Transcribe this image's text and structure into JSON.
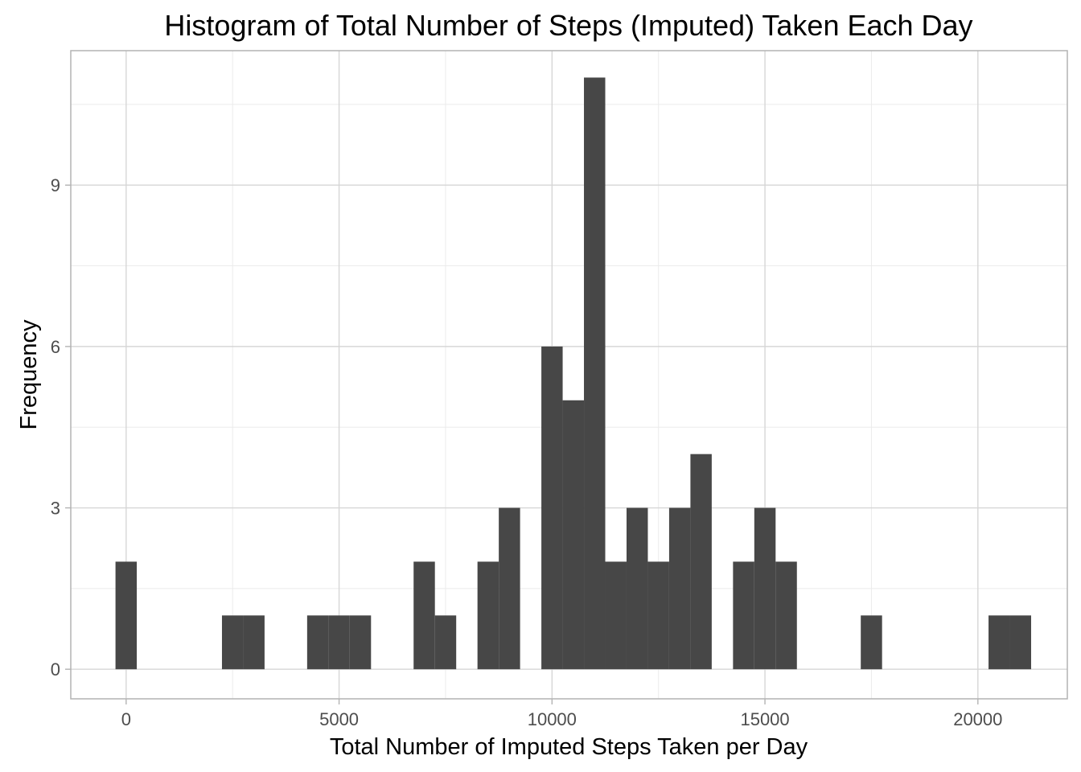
{
  "chart_data": {
    "type": "bar",
    "title": "Histogram of Total Number of Steps (Imputed) Taken Each Day",
    "xlabel": "Total Number of Imputed Steps Taken per Day",
    "ylabel": "Frequency",
    "xlim": [
      -1300,
      22100
    ],
    "ylim": [
      -0.55,
      11.5
    ],
    "xticks": [
      0,
      5000,
      10000,
      15000,
      20000
    ],
    "xtick_labels": [
      "0",
      "5000",
      "10000",
      "15000",
      "20000"
    ],
    "yticks": [
      0,
      3,
      6,
      9
    ],
    "ytick_labels": [
      "0",
      "3",
      "6",
      "9"
    ],
    "grid": true,
    "bin_width": 500,
    "bin_centers": [
      0,
      500,
      1000,
      1500,
      2000,
      2500,
      3000,
      3500,
      4000,
      4500,
      5000,
      5500,
      6000,
      6500,
      7000,
      7500,
      8000,
      8500,
      9000,
      9500,
      10000,
      10500,
      11000,
      11500,
      12000,
      12500,
      13000,
      13500,
      14000,
      14500,
      15000,
      15500,
      16000,
      16500,
      17000,
      17500,
      18000,
      18500,
      19000,
      19500,
      20000,
      20500,
      21000
    ],
    "values": [
      2,
      0,
      0,
      0,
      0,
      1,
      1,
      0,
      0,
      1,
      1,
      1,
      0,
      0,
      2,
      1,
      0,
      2,
      3,
      0,
      6,
      5,
      11,
      2,
      3,
      2,
      3,
      4,
      0,
      2,
      3,
      2,
      0,
      0,
      0,
      1,
      0,
      0,
      0,
      0,
      0,
      1,
      1
    ],
    "colors": {
      "bar": "#474747",
      "panel_border": "#b3b3b3",
      "grid_major": "#d6d6d6",
      "grid_minor": "#ebebeb"
    }
  }
}
